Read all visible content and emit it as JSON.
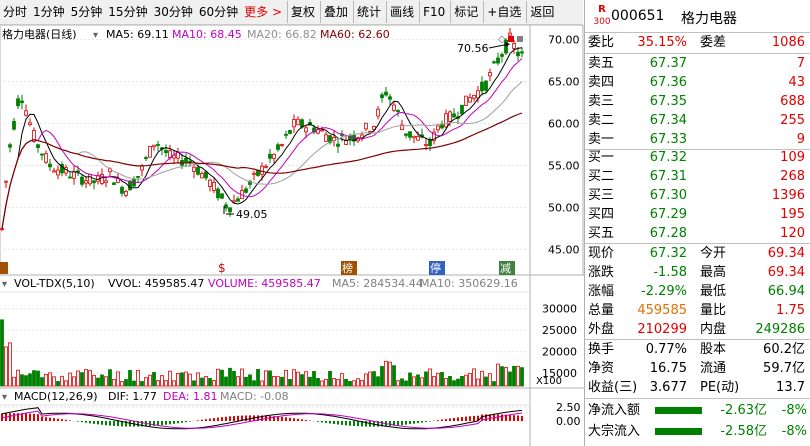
{
  "toolbar": {
    "items": [
      "分时",
      "1分钟",
      "5分钟",
      "15分钟",
      "30分钟",
      "60分钟",
      "更多 >",
      "复权",
      "叠加",
      "统计",
      "画线",
      "F10",
      "标记",
      "+自选",
      "返回"
    ]
  },
  "kline": {
    "title": "格力电器(日线)",
    "ma5": "MA5: 69.11",
    "ma10": "MA10: 68.45",
    "ma20": "MA20: 66.82",
    "ma60": "MA60: 62.60",
    "high_mark": "70.56",
    "low_mark": "49.05",
    "yticks": [
      "70.00",
      "65.00",
      "60.00",
      "55.00",
      "50.00",
      "45.00"
    ],
    "ymin": 43.5,
    "ymax": 71.5,
    "markers": [
      "榜",
      "停",
      "减"
    ]
  },
  "volume": {
    "title": "VOL-TDX(5,10)",
    "vvol": "VVOL: 459585.47",
    "volume": "VOLUME: 459585.47",
    "ma5": "MA5: 284534.44",
    "ma10": "MA10: 350629.16",
    "yticks": [
      "30000",
      "25000",
      "20000",
      "15000"
    ],
    "unit": "X100"
  },
  "macd": {
    "title": "MACD(12,26,9)",
    "dif": "DIF: 1.77",
    "dea": "DEA: 1.81",
    "macd": "MACD: -0.08",
    "yticks": [
      "2.50",
      "0.00"
    ]
  },
  "stock": {
    "r_label": "R",
    "r_num": "300",
    "code": "000651",
    "name": "格力电器"
  },
  "ratio": {
    "weibi_label": "委比",
    "weibi": "35.15%",
    "weicha_label": "委差",
    "weicha": "1086"
  },
  "sell": [
    {
      "label": "卖五",
      "price": "67.37",
      "vol": "7"
    },
    {
      "label": "卖四",
      "price": "67.36",
      "vol": "43"
    },
    {
      "label": "卖三",
      "price": "67.35",
      "vol": "688"
    },
    {
      "label": "卖二",
      "price": "67.34",
      "vol": "255"
    },
    {
      "label": "卖一",
      "price": "67.33",
      "vol": "9"
    }
  ],
  "buy": [
    {
      "label": "买一",
      "price": "67.32",
      "vol": "109"
    },
    {
      "label": "买二",
      "price": "67.31",
      "vol": "268"
    },
    {
      "label": "买三",
      "price": "67.30",
      "vol": "1396"
    },
    {
      "label": "买四",
      "price": "67.29",
      "vol": "195"
    },
    {
      "label": "买五",
      "price": "67.28",
      "vol": "120"
    }
  ],
  "quote": [
    {
      "l1": "现价",
      "v1": "67.32",
      "l2": "今开",
      "v2": "69.34"
    },
    {
      "l1": "涨跌",
      "v1": "-1.58",
      "l2": "最高",
      "v2": "69.34"
    },
    {
      "l1": "涨幅",
      "v1": "-2.29%",
      "l2": "最低",
      "v2": "66.94"
    },
    {
      "l1": "总量",
      "v1": "459585",
      "l2": "量比",
      "v2": "1.75"
    },
    {
      "l1": "外盘",
      "v1": "210299",
      "l2": "内盘",
      "v2": "249286"
    }
  ],
  "fund": [
    {
      "l1": "换手",
      "v1": "0.77%",
      "l2": "股本",
      "v2": "60.2亿"
    },
    {
      "l1": "净资",
      "v1": "16.75",
      "l2": "流通",
      "v2": "59.7亿"
    },
    {
      "l1": "收益(三)",
      "v1": "3.677",
      "l2": "PE(动)",
      "v2": "13.7"
    }
  ],
  "flow": [
    {
      "label": "净流入额",
      "amount": "-2.63亿",
      "pct": "-8%",
      "bar_fraction": 0.63
    },
    {
      "label": "大宗流入",
      "amount": "-2.58亿",
      "pct": "-8%",
      "bar_fraction": 0.62
    }
  ],
  "colors": {
    "up": "#e00000",
    "down": "#008000",
    "ma5": "#000000",
    "ma10": "#c000c0",
    "ma20": "#a0a0a0",
    "ma60": "#800000"
  }
}
